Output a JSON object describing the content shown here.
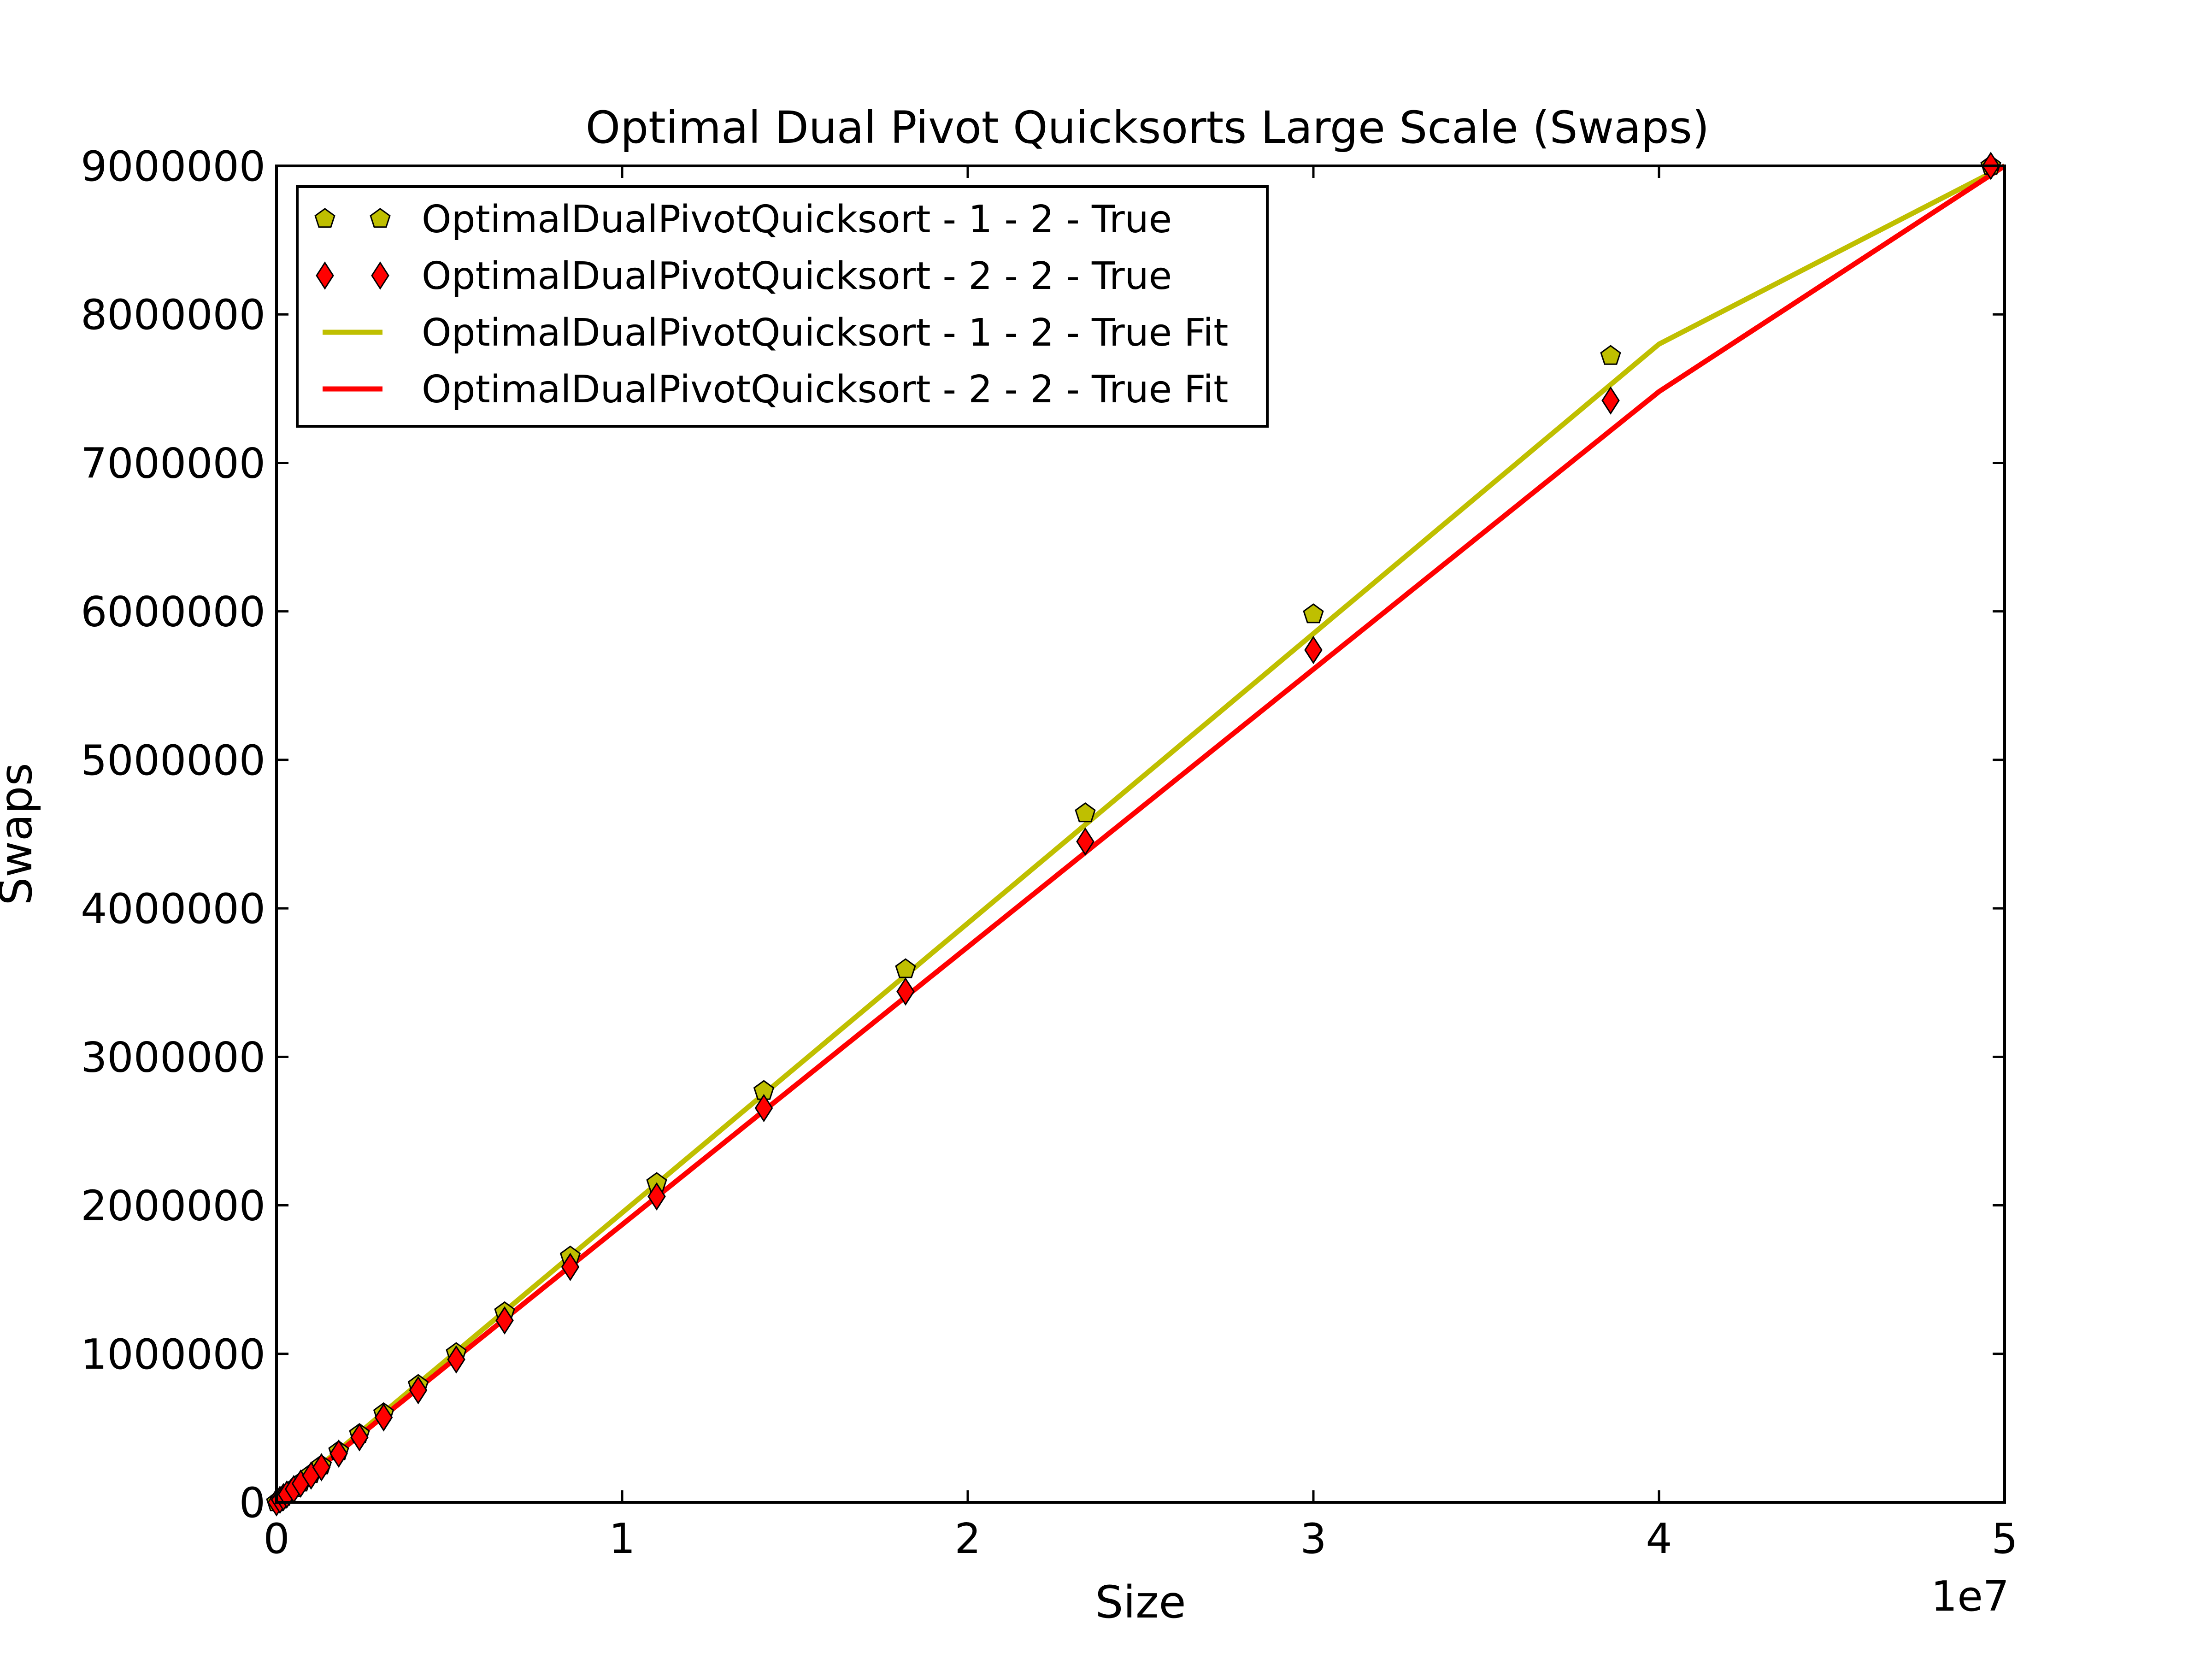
{
  "chart_data": {
    "type": "scatter",
    "title": "Optimal Dual Pivot Quicksorts Large Scale (Swaps)",
    "xlabel": "Size",
    "ylabel": "Swaps",
    "x_offset_label": "1e7",
    "xlim": [
      0,
      5
    ],
    "ylim": [
      0,
      9000000
    ],
    "x_ticks": [
      0,
      1,
      2,
      3,
      4,
      5
    ],
    "x_tick_labels": [
      "0",
      "1",
      "2",
      "3",
      "4",
      "5"
    ],
    "y_ticks": [
      0,
      1000000,
      2000000,
      3000000,
      4000000,
      5000000,
      6000000,
      7000000,
      8000000,
      9000000
    ],
    "y_tick_labels": [
      "0",
      "1000000",
      "2000000",
      "3000000",
      "4000000",
      "5000000",
      "6000000",
      "7000000",
      "8000000",
      "9000000"
    ],
    "grid": false,
    "legend_position": "top-left",
    "series": [
      {
        "name": "OptimalDualPivotQuicksort - 1 - 2 - True",
        "kind": "markers",
        "marker": "pentagon",
        "color": "#bfbf00",
        "x": [
          0.0,
          0.01,
          0.02,
          0.03,
          0.05,
          0.07,
          0.1,
          0.13,
          0.18,
          0.24,
          0.31,
          0.41,
          0.52,
          0.66,
          0.85,
          1.1,
          1.41,
          1.82,
          2.34,
          3.0,
          3.86,
          4.96
        ],
        "y": [
          0,
          18000,
          37000,
          56000,
          94000,
          133000,
          190000,
          248000,
          344000,
          460000,
          600000,
          790000,
          1005000,
          1280000,
          1655000,
          2150000,
          2770000,
          3590000,
          4640000,
          5980000,
          7720000,
          9000000
        ]
      },
      {
        "name": "OptimalDualPivotQuicksort - 2 - 2 - True",
        "kind": "markers",
        "marker": "diamond",
        "color": "#ff0000",
        "x": [
          0.0,
          0.01,
          0.02,
          0.03,
          0.05,
          0.07,
          0.1,
          0.13,
          0.18,
          0.24,
          0.31,
          0.41,
          0.52,
          0.66,
          0.85,
          1.1,
          1.41,
          1.82,
          2.34,
          3.0,
          3.86,
          4.96
        ],
        "y": [
          0,
          17000,
          35000,
          53000,
          89000,
          126000,
          180000,
          236000,
          328000,
          438000,
          572000,
          755000,
          962000,
          1225000,
          1585000,
          2060000,
          2655000,
          3440000,
          4450000,
          5740000,
          7420000,
          9000000
        ]
      },
      {
        "name": "OptimalDualPivotQuicksort - 1 - 2 - True Fit",
        "kind": "line",
        "color": "#bfbf00",
        "x": [
          0,
          1,
          2,
          3,
          4,
          5
        ],
        "y": [
          0,
          1950000,
          3900000,
          5850000,
          7800000,
          9000000
        ]
      },
      {
        "name": "OptimalDualPivotQuicksort - 2 - 2 - True Fit",
        "kind": "line",
        "color": "#ff0000",
        "x": [
          0,
          1,
          2,
          3,
          4,
          5
        ],
        "y": [
          0,
          1870000,
          3740000,
          5610000,
          7480000,
          9000000
        ]
      }
    ]
  }
}
